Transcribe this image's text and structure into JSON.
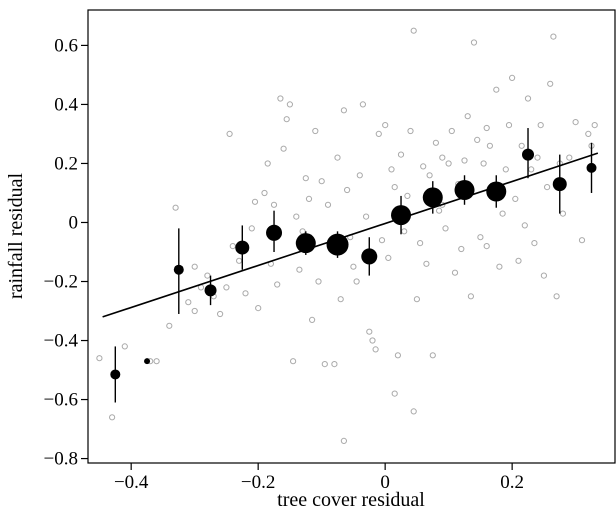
{
  "chart_data": {
    "type": "scatter",
    "xlabel": "tree cover residual",
    "ylabel": "rainfall residual",
    "xlim": [
      -0.468,
      0.362
    ],
    "ylim": [
      -0.815,
      0.72
    ],
    "x_ticks": [
      -0.4,
      -0.2,
      0,
      0.2
    ],
    "x_tick_labels": [
      "−0.4",
      "−0.2",
      "0",
      "0.2"
    ],
    "y_ticks": [
      -0.8,
      -0.6,
      -0.4,
      -0.2,
      0,
      0.2,
      0.4,
      0.6
    ],
    "y_tick_labels": [
      "−0.8",
      "−0.6",
      "−0.4",
      "−0.2",
      "0",
      "0.2",
      "0.4",
      "0.6"
    ],
    "grid": false,
    "legend": null,
    "colors": {
      "raw_points": "#aaaaaa",
      "binned_means": "#000000",
      "fit_line": "#000000"
    },
    "series": [
      {
        "role": "raw observations (open grey circles)",
        "points": [
          [
            -0.45,
            -0.46
          ],
          [
            -0.43,
            -0.66
          ],
          [
            -0.41,
            -0.42
          ],
          [
            -0.37,
            -0.47
          ],
          [
            -0.36,
            -0.47
          ],
          [
            -0.34,
            -0.35
          ],
          [
            -0.33,
            0.05
          ],
          [
            -0.31,
            -0.27
          ],
          [
            -0.3,
            -0.3
          ],
          [
            -0.29,
            -0.22
          ],
          [
            -0.28,
            -0.18
          ],
          [
            -0.27,
            -0.25
          ],
          [
            -0.26,
            -0.31
          ],
          [
            -0.25,
            -0.22
          ],
          [
            -0.245,
            0.3
          ],
          [
            -0.24,
            -0.08
          ],
          [
            -0.23,
            -0.13
          ],
          [
            -0.22,
            -0.24
          ],
          [
            -0.21,
            -0.02
          ],
          [
            -0.205,
            0.07
          ],
          [
            -0.2,
            -0.29
          ],
          [
            -0.19,
            0.1
          ],
          [
            -0.185,
            0.2
          ],
          [
            -0.18,
            -0.14
          ],
          [
            -0.175,
            0.06
          ],
          [
            -0.17,
            -0.21
          ],
          [
            -0.165,
            0.42
          ],
          [
            -0.16,
            0.25
          ],
          [
            -0.155,
            0.35
          ],
          [
            -0.15,
            0.4
          ],
          [
            -0.145,
            -0.47
          ],
          [
            -0.14,
            0.02
          ],
          [
            -0.135,
            -0.16
          ],
          [
            -0.13,
            -0.03
          ],
          [
            -0.125,
            0.15
          ],
          [
            -0.12,
            0.08
          ],
          [
            -0.115,
            -0.33
          ],
          [
            -0.11,
            0.31
          ],
          [
            -0.105,
            -0.2
          ],
          [
            -0.1,
            0.14
          ],
          [
            -0.095,
            -0.48
          ],
          [
            -0.09,
            0.06
          ],
          [
            -0.085,
            -0.09
          ],
          [
            -0.08,
            -0.48
          ],
          [
            -0.075,
            0.22
          ],
          [
            -0.07,
            -0.26
          ],
          [
            -0.065,
            0.38
          ],
          [
            -0.06,
            0.11
          ],
          [
            -0.055,
            -0.05
          ],
          [
            -0.05,
            -0.15
          ],
          [
            -0.045,
            -0.2
          ],
          [
            -0.04,
            0.16
          ],
          [
            -0.035,
            0.4
          ],
          [
            -0.03,
            0.02
          ],
          [
            -0.025,
            -0.37
          ],
          [
            -0.02,
            -0.4
          ],
          [
            -0.015,
            -0.43
          ],
          [
            -0.01,
            0.3
          ],
          [
            -0.005,
            -0.06
          ],
          [
            0.0,
            0.33
          ],
          [
            0.005,
            -0.12
          ],
          [
            0.01,
            0.18
          ],
          [
            0.015,
            0.12
          ],
          [
            0.02,
            -0.45
          ],
          [
            0.025,
            0.23
          ],
          [
            0.03,
            -0.03
          ],
          [
            0.035,
            0.09
          ],
          [
            0.04,
            0.31
          ],
          [
            0.045,
            0.65
          ],
          [
            0.05,
            -0.26
          ],
          [
            0.055,
            -0.07
          ],
          [
            0.06,
            0.19
          ],
          [
            0.065,
            -0.14
          ],
          [
            0.07,
            0.16
          ],
          [
            0.075,
            -0.45
          ],
          [
            0.08,
            0.27
          ],
          [
            0.085,
            0.04
          ],
          [
            0.09,
            0.22
          ],
          [
            0.095,
            -0.02
          ],
          [
            0.1,
            0.2
          ],
          [
            0.105,
            0.31
          ],
          [
            0.11,
            -0.17
          ],
          [
            0.115,
            0.13
          ],
          [
            0.12,
            -0.09
          ],
          [
            0.125,
            0.21
          ],
          [
            0.13,
            0.36
          ],
          [
            0.135,
            -0.25
          ],
          [
            0.14,
            0.61
          ],
          [
            0.145,
            0.28
          ],
          [
            0.15,
            -0.05
          ],
          [
            0.155,
            0.2
          ],
          [
            0.16,
            -0.08
          ],
          [
            0.165,
            0.26
          ],
          [
            0.17,
            0.12
          ],
          [
            0.175,
            0.45
          ],
          [
            0.18,
            -0.15
          ],
          [
            0.185,
            0.03
          ],
          [
            0.19,
            0.18
          ],
          [
            0.195,
            0.33
          ],
          [
            0.2,
            0.49
          ],
          [
            0.205,
            0.08
          ],
          [
            0.21,
            -0.13
          ],
          [
            0.215,
            0.26
          ],
          [
            0.22,
            -0.01
          ],
          [
            0.225,
            0.42
          ],
          [
            0.23,
            0.18
          ],
          [
            0.235,
            -0.07
          ],
          [
            0.24,
            0.22
          ],
          [
            0.245,
            0.33
          ],
          [
            0.25,
            -0.18
          ],
          [
            0.255,
            0.12
          ],
          [
            0.26,
            0.47
          ],
          [
            0.265,
            0.63
          ],
          [
            0.27,
            -0.25
          ],
          [
            0.275,
            0.2
          ],
          [
            0.28,
            0.03
          ],
          [
            0.29,
            0.22
          ],
          [
            0.3,
            0.34
          ],
          [
            0.31,
            -0.06
          ],
          [
            0.32,
            0.3
          ],
          [
            0.325,
            0.26
          ],
          [
            0.33,
            0.33
          ],
          [
            0.015,
            -0.58
          ],
          [
            0.045,
            -0.64
          ],
          [
            -0.065,
            -0.74
          ],
          [
            -0.3,
            -0.15
          ],
          [
            0.09,
            0.06
          ],
          [
            0.16,
            0.32
          ]
        ]
      },
      {
        "role": "binned means (filled circles with error bars)",
        "points": [
          {
            "x": -0.425,
            "y": -0.515,
            "lo": -0.61,
            "hi": -0.42,
            "size": 5
          },
          {
            "x": -0.375,
            "y": -0.47,
            "lo": -0.47,
            "hi": -0.47,
            "size": 3
          },
          {
            "x": -0.325,
            "y": -0.16,
            "lo": -0.31,
            "hi": -0.02,
            "size": 5
          },
          {
            "x": -0.275,
            "y": -0.23,
            "lo": -0.28,
            "hi": -0.18,
            "size": 6
          },
          {
            "x": -0.225,
            "y": -0.085,
            "lo": -0.16,
            "hi": -0.01,
            "size": 7
          },
          {
            "x": -0.175,
            "y": -0.035,
            "lo": -0.1,
            "hi": 0.04,
            "size": 8
          },
          {
            "x": -0.125,
            "y": -0.07,
            "lo": -0.11,
            "hi": -0.03,
            "size": 10
          },
          {
            "x": -0.075,
            "y": -0.075,
            "lo": -0.12,
            "hi": -0.03,
            "size": 11
          },
          {
            "x": -0.025,
            "y": -0.115,
            "lo": -0.18,
            "hi": -0.05,
            "size": 8
          },
          {
            "x": 0.025,
            "y": 0.025,
            "lo": -0.04,
            "hi": 0.09,
            "size": 10
          },
          {
            "x": 0.075,
            "y": 0.085,
            "lo": 0.03,
            "hi": 0.14,
            "size": 10
          },
          {
            "x": 0.125,
            "y": 0.11,
            "lo": 0.06,
            "hi": 0.16,
            "size": 10
          },
          {
            "x": 0.175,
            "y": 0.105,
            "lo": 0.05,
            "hi": 0.16,
            "size": 10
          },
          {
            "x": 0.225,
            "y": 0.23,
            "lo": 0.15,
            "hi": 0.32,
            "size": 6
          },
          {
            "x": 0.275,
            "y": 0.13,
            "lo": 0.03,
            "hi": 0.23,
            "size": 7
          },
          {
            "x": 0.325,
            "y": 0.185,
            "lo": 0.1,
            "hi": 0.27,
            "size": 5
          }
        ]
      },
      {
        "role": "linear fit",
        "line": [
          [
            -0.445,
            -0.32
          ],
          [
            0.335,
            0.235
          ]
        ]
      }
    ]
  }
}
